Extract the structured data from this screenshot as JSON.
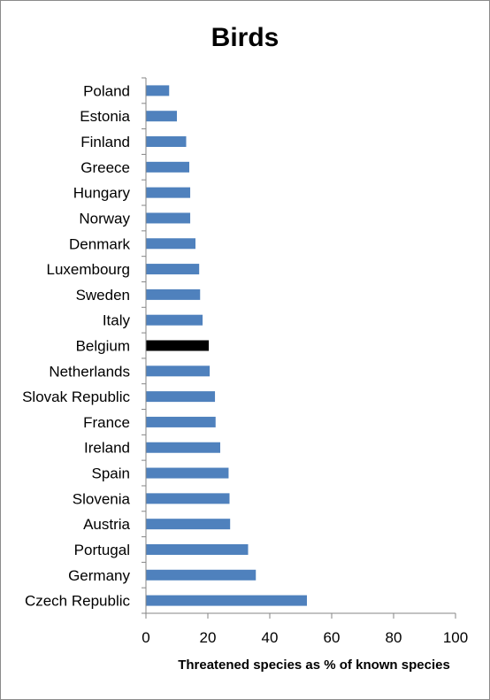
{
  "chart_data": {
    "type": "bar",
    "orientation": "horizontal",
    "title": "Birds",
    "xlabel": "Threatened species as % of known species",
    "ylabel": "",
    "xlim": [
      0,
      100
    ],
    "xticks": [
      0,
      20,
      40,
      60,
      80,
      100
    ],
    "grid": false,
    "categories": [
      "Poland",
      "Estonia",
      "Finland",
      "Greece",
      "Hungary",
      "Norway",
      "Denmark",
      "Luxembourg",
      "Sweden",
      "Italy",
      "Belgium",
      "Netherlands",
      "Slovak Republic",
      "France",
      "Ireland",
      "Spain",
      "Slovenia",
      "Austria",
      "Portugal",
      "Germany",
      "Czech Republic"
    ],
    "values": [
      7.5,
      10,
      13,
      14,
      14.3,
      14.3,
      16,
      17.2,
      17.5,
      18.3,
      20.3,
      20.6,
      22.3,
      22.5,
      24,
      26.7,
      27,
      27.2,
      33,
      35.5,
      52
    ],
    "highlight": "Belgium",
    "colors": {
      "bar": "#4f81bd",
      "highlight": "#000000",
      "axis": "#868686"
    }
  }
}
